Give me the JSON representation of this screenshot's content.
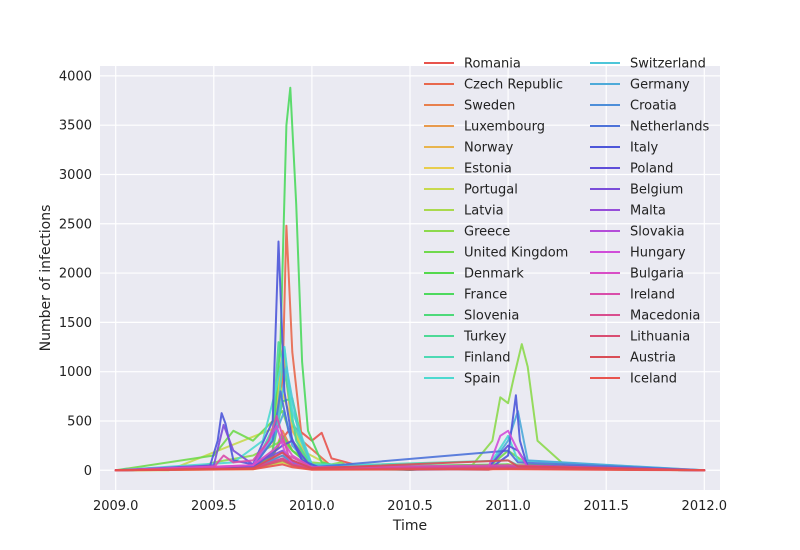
{
  "chart_data": {
    "type": "line",
    "title": "",
    "xlabel": "Time",
    "ylabel": "Number of infections",
    "xlim": [
      2008.92,
      2012.08
    ],
    "ylim": [
      -200,
      4100
    ],
    "xticks": [
      2009.0,
      2009.5,
      2010.0,
      2010.5,
      2011.0,
      2011.5,
      2012.0
    ],
    "xtick_labels": [
      "2009.0",
      "2009.5",
      "2010.0",
      "2010.5",
      "2011.0",
      "2011.5",
      "2012.0"
    ],
    "yticks": [
      0,
      500,
      1000,
      1500,
      2000,
      2500,
      3000,
      3500,
      4000
    ],
    "ytick_labels": [
      "0",
      "500",
      "1000",
      "1500",
      "2000",
      "2500",
      "3000",
      "3500",
      "4000"
    ],
    "grid": true,
    "legend_position": "top-right",
    "legend_columns": 2,
    "series": [
      {
        "name": "Romania",
        "color": "#e8534d",
        "x": [
          2009.0,
          2009.7,
          2009.8,
          2009.85,
          2009.9,
          2009.95,
          2010.0,
          2010.05,
          2010.1,
          2010.3,
          2010.9,
          2011.0,
          2011.1,
          2011.3,
          2012.0
        ],
        "y": [
          0,
          20,
          150,
          320,
          450,
          380,
          300,
          380,
          120,
          15,
          5,
          40,
          60,
          10,
          0
        ]
      },
      {
        "name": "Czech Republic",
        "color": "#e8684d",
        "x": [
          2009.0,
          2009.7,
          2009.8,
          2009.85,
          2009.87,
          2009.9,
          2009.95,
          2010.1,
          2010.5,
          2011.0,
          2011.1,
          2012.0
        ],
        "y": [
          0,
          30,
          200,
          900,
          2480,
          1200,
          300,
          40,
          5,
          60,
          30,
          0
        ]
      },
      {
        "name": "Sweden",
        "color": "#e8804d",
        "x": [
          2009.0,
          2009.7,
          2009.8,
          2009.85,
          2009.9,
          2010.0,
          2010.5,
          2011.0,
          2011.1,
          2012.0
        ],
        "y": [
          0,
          30,
          120,
          400,
          200,
          40,
          5,
          40,
          20,
          0
        ]
      },
      {
        "name": "Luxembourg",
        "color": "#e89a4d",
        "x": [
          2009.0,
          2009.6,
          2009.75,
          2009.85,
          2009.9,
          2010.0,
          2011.0,
          2012.0
        ],
        "y": [
          0,
          10,
          60,
          150,
          80,
          20,
          15,
          0
        ]
      },
      {
        "name": "Norway",
        "color": "#e8b44d",
        "x": [
          2009.0,
          2009.7,
          2009.8,
          2009.85,
          2009.9,
          2010.0,
          2011.0,
          2011.05,
          2012.0
        ],
        "y": [
          0,
          20,
          200,
          1250,
          400,
          50,
          30,
          20,
          0
        ]
      },
      {
        "name": "Estonia",
        "color": "#e8cd4d",
        "x": [
          2009.0,
          2009.7,
          2009.85,
          2009.9,
          2010.0,
          2011.0,
          2012.0
        ],
        "y": [
          0,
          10,
          80,
          40,
          10,
          20,
          0
        ]
      },
      {
        "name": "Portugal",
        "color": "#c8d94d",
        "x": [
          2009.0,
          2009.27,
          2009.8,
          2009.83,
          2009.88,
          2009.95,
          2010.1,
          2010.5,
          2011.0,
          2012.0
        ],
        "y": [
          0,
          0,
          420,
          900,
          600,
          200,
          40,
          5,
          60,
          0
        ]
      },
      {
        "name": "Latvia",
        "color": "#aad94d",
        "x": [
          2009.0,
          2009.7,
          2009.85,
          2009.9,
          2010.0,
          2011.0,
          2012.0
        ],
        "y": [
          0,
          15,
          90,
          50,
          10,
          15,
          0
        ]
      },
      {
        "name": "Greece",
        "color": "#8cd94d",
        "x": [
          2009.0,
          2009.4,
          2009.5,
          2009.7,
          2009.85,
          2009.9,
          2010.0,
          2010.1,
          2010.15,
          2010.2,
          2010.8,
          2010.92,
          2010.96,
          2011.0,
          2011.03,
          2011.07,
          2011.1,
          2011.15,
          2011.3,
          2012.0
        ],
        "y": [
          0,
          20,
          80,
          150,
          300,
          200,
          80,
          60,
          80,
          20,
          10,
          300,
          740,
          680,
          950,
          1280,
          1050,
          300,
          30,
          0
        ]
      },
      {
        "name": "United Kingdom",
        "color": "#70d94d",
        "x": [
          2009.0,
          2009.5,
          2009.6,
          2009.7,
          2009.85,
          2009.9,
          2010.0,
          2010.5,
          2010.9,
          2011.0,
          2011.1,
          2012.0
        ],
        "y": [
          0,
          150,
          400,
          300,
          600,
          300,
          60,
          10,
          30,
          200,
          60,
          0
        ]
      },
      {
        "name": "Denmark",
        "color": "#54d94d",
        "x": [
          2009.0,
          2009.7,
          2009.8,
          2009.85,
          2009.9,
          2010.0,
          2011.0,
          2011.05,
          2012.0
        ],
        "y": [
          0,
          20,
          150,
          350,
          200,
          30,
          60,
          30,
          0
        ]
      },
      {
        "name": "France",
        "color": "#4dd95e",
        "x": [
          2009.0,
          2009.7,
          2009.8,
          2009.84,
          2009.87,
          2009.89,
          2009.92,
          2009.95,
          2009.98,
          2010.05,
          2010.2,
          2010.5,
          2011.0,
          2012.0
        ],
        "y": [
          0,
          40,
          300,
          1300,
          3500,
          3880,
          2700,
          1100,
          400,
          80,
          10,
          5,
          40,
          0
        ]
      },
      {
        "name": "Slovenia",
        "color": "#4dd97a",
        "x": [
          2009.0,
          2009.7,
          2009.8,
          2009.85,
          2009.9,
          2009.95,
          2010.0,
          2011.0,
          2012.0
        ],
        "y": [
          0,
          20,
          200,
          700,
          730,
          300,
          40,
          30,
          0
        ]
      },
      {
        "name": "Turkey",
        "color": "#4dd996",
        "x": [
          2009.0,
          2009.7,
          2009.8,
          2009.83,
          2009.87,
          2009.92,
          2010.0,
          2011.0,
          2012.0
        ],
        "y": [
          0,
          30,
          400,
          1300,
          900,
          300,
          30,
          20,
          0
        ]
      },
      {
        "name": "Finland",
        "color": "#4dd9b4",
        "x": [
          2009.0,
          2009.7,
          2009.82,
          2009.86,
          2009.9,
          2010.0,
          2011.0,
          2011.05,
          2012.0
        ],
        "y": [
          0,
          20,
          500,
          1250,
          500,
          40,
          100,
          50,
          0
        ]
      },
      {
        "name": "Spain",
        "color": "#4dd9d0",
        "x": [
          2009.0,
          2009.6,
          2009.75,
          2009.82,
          2009.86,
          2009.9,
          2010.0,
          2010.9,
          2011.0,
          2011.05,
          2012.0
        ],
        "y": [
          0,
          80,
          300,
          850,
          1250,
          600,
          60,
          40,
          350,
          100,
          0
        ]
      },
      {
        "name": "Switzerland",
        "color": "#4dc6d9",
        "x": [
          2009.0,
          2009.7,
          2009.82,
          2009.87,
          2009.93,
          2010.0,
          2011.0,
          2012.0
        ],
        "y": [
          0,
          30,
          400,
          1050,
          400,
          50,
          20,
          0
        ]
      },
      {
        "name": "Germany",
        "color": "#4daad9",
        "x": [
          2009.0,
          2009.7,
          2009.8,
          2009.86,
          2009.9,
          2010.0,
          2010.9,
          2011.0,
          2011.05,
          2011.1,
          2012.0
        ],
        "y": [
          0,
          30,
          300,
          600,
          250,
          30,
          20,
          300,
          600,
          100,
          0
        ]
      },
      {
        "name": "Croatia",
        "color": "#4d8ed9",
        "x": [
          2009.0,
          2009.7,
          2009.85,
          2009.9,
          2010.0,
          2011.0,
          2012.0
        ],
        "y": [
          0,
          15,
          150,
          80,
          15,
          20,
          0
        ]
      },
      {
        "name": "Netherlands",
        "color": "#4d72d9",
        "x": [
          2009.0,
          2009.7,
          2009.8,
          2009.84,
          2009.88,
          2009.95,
          2010.0,
          2011.0,
          2011.05,
          2012.0
        ],
        "y": [
          0,
          40,
          300,
          800,
          400,
          100,
          30,
          200,
          80,
          0
        ]
      },
      {
        "name": "Italy",
        "color": "#4d56d9",
        "x": [
          2009.0,
          2009.48,
          2009.52,
          2009.54,
          2009.56,
          2009.6,
          2009.7,
          2009.8,
          2009.83,
          2009.86,
          2009.9,
          2009.95,
          2010.05,
          2010.5,
          2010.9,
          2011.0,
          2011.04,
          2011.06,
          2011.1,
          2012.0
        ],
        "y": [
          0,
          40,
          300,
          580,
          470,
          100,
          60,
          500,
          2320,
          800,
          300,
          100,
          20,
          5,
          10,
          150,
          760,
          300,
          30,
          0
        ]
      },
      {
        "name": "Poland",
        "color": "#5e4dd9",
        "x": [
          2009.0,
          2009.7,
          2009.85,
          2009.9,
          2009.95,
          2010.0,
          2010.9,
          2011.0,
          2011.05,
          2011.1,
          2012.0
        ],
        "y": [
          0,
          30,
          250,
          300,
          150,
          20,
          30,
          250,
          200,
          50,
          0
        ]
      },
      {
        "name": "Belgium",
        "color": "#7a4dd9",
        "x": [
          2009.0,
          2009.5,
          2009.55,
          2009.6,
          2009.7,
          2009.85,
          2009.9,
          2010.0,
          2011.0,
          2012.0
        ],
        "y": [
          0,
          50,
          460,
          200,
          60,
          200,
          100,
          20,
          40,
          0
        ]
      },
      {
        "name": "Malta",
        "color": "#964dd9",
        "x": [
          2009.0,
          2009.7,
          2009.85,
          2009.9,
          2010.0,
          2011.0,
          2012.0
        ],
        "y": [
          0,
          15,
          120,
          60,
          10,
          20,
          0
        ]
      },
      {
        "name": "Slovakia",
        "color": "#b44dd9",
        "x": [
          2009.0,
          2009.7,
          2009.85,
          2009.9,
          2010.0,
          2011.0,
          2012.0
        ],
        "y": [
          0,
          20,
          180,
          90,
          20,
          20,
          0
        ]
      },
      {
        "name": "Hungary",
        "color": "#d04dd9",
        "x": [
          2009.0,
          2009.7,
          2009.78,
          2009.82,
          2009.86,
          2009.9,
          2010.0,
          2010.9,
          2010.96,
          2011.0,
          2011.05,
          2011.1,
          2012.0
        ],
        "y": [
          0,
          50,
          300,
          450,
          200,
          60,
          20,
          30,
          350,
          400,
          200,
          30,
          0
        ]
      },
      {
        "name": "Bulgaria",
        "color": "#d94dc6",
        "x": [
          2009.0,
          2009.7,
          2009.8,
          2009.85,
          2009.9,
          2010.0,
          2011.0,
          2012.0
        ],
        "y": [
          0,
          50,
          200,
          300,
          150,
          30,
          20,
          0
        ]
      },
      {
        "name": "Ireland",
        "color": "#d94daa",
        "x": [
          2009.0,
          2009.5,
          2009.55,
          2009.6,
          2009.7,
          2009.78,
          2009.82,
          2009.88,
          2010.0,
          2011.0,
          2012.0
        ],
        "y": [
          0,
          30,
          150,
          80,
          100,
          300,
          550,
          150,
          30,
          50,
          0
        ]
      },
      {
        "name": "Macedonia",
        "color": "#d94d8e",
        "x": [
          2009.0,
          2009.7,
          2009.85,
          2009.9,
          2010.0,
          2011.0,
          2012.0
        ],
        "y": [
          0,
          20,
          120,
          60,
          15,
          30,
          0
        ]
      },
      {
        "name": "Lithuania",
        "color": "#d94d72",
        "x": [
          2009.0,
          2009.7,
          2009.85,
          2009.9,
          2010.0,
          2011.0,
          2012.0
        ],
        "y": [
          0,
          15,
          100,
          50,
          10,
          20,
          0
        ]
      },
      {
        "name": "Austria",
        "color": "#d94d56",
        "x": [
          2009.0,
          2009.7,
          2009.85,
          2009.9,
          2010.0,
          2011.0,
          2011.05,
          2012.0
        ],
        "y": [
          0,
          20,
          180,
          100,
          20,
          100,
          40,
          0
        ]
      },
      {
        "name": "Iceland",
        "color": "#e8534d",
        "x": [
          2009.0,
          2009.7,
          2009.85,
          2009.9,
          2010.0,
          2011.0,
          2012.0
        ],
        "y": [
          0,
          10,
          60,
          30,
          5,
          10,
          0
        ]
      }
    ]
  }
}
